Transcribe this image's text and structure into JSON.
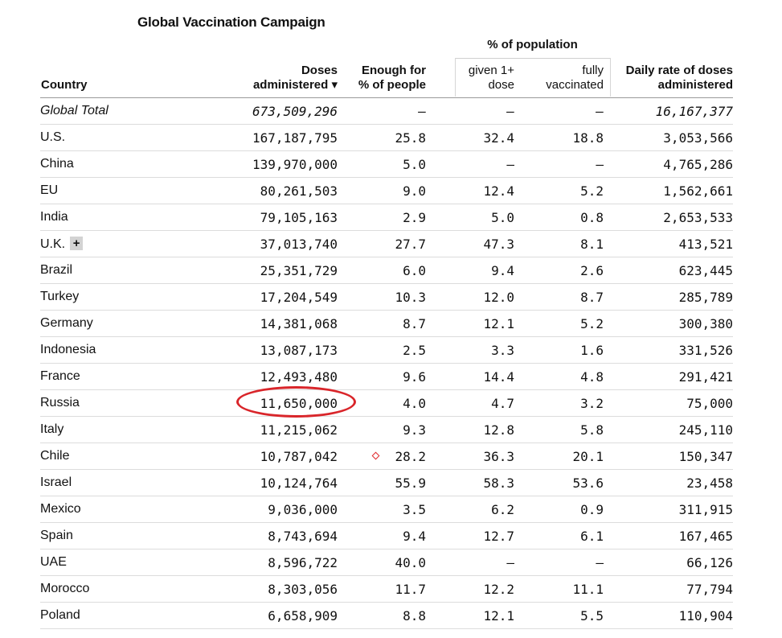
{
  "title": "Global Vaccination Campaign",
  "group_header": "% of population",
  "columns": {
    "country": "Country",
    "doses_line1": "Doses",
    "doses_line2": "administered ▾",
    "enough_line1": "Enough for",
    "enough_line2": "% of people",
    "given_line1": "given 1+",
    "given_line2": "dose",
    "fully_line1": "fully",
    "fully_line2": "vaccinated",
    "daily_line1": "Daily rate of doses",
    "daily_line2": "administered"
  },
  "total_row": {
    "country": "Global Total",
    "doses": "673,509,296",
    "enough": "–",
    "given": "–",
    "fully": "–",
    "daily": "16,167,377"
  },
  "rows": [
    {
      "country": "U.S.",
      "doses": "167,187,795",
      "enough": "25.8",
      "given": "32.4",
      "fully": "18.8",
      "daily": "3,053,566"
    },
    {
      "country": "China",
      "doses": "139,970,000",
      "enough": "5.0",
      "given": "–",
      "fully": "–",
      "daily": "4,765,286"
    },
    {
      "country": "EU",
      "doses": "80,261,503",
      "enough": "9.0",
      "given": "12.4",
      "fully": "5.2",
      "daily": "1,562,661"
    },
    {
      "country": "India",
      "doses": "79,105,163",
      "enough": "2.9",
      "given": "5.0",
      "fully": "0.8",
      "daily": "2,653,533"
    },
    {
      "country": "U.K.",
      "badge": "+",
      "doses": "37,013,740",
      "enough": "27.7",
      "given": "47.3",
      "fully": "8.1",
      "daily": "413,521"
    },
    {
      "country": "Brazil",
      "doses": "25,351,729",
      "enough": "6.0",
      "given": "9.4",
      "fully": "2.6",
      "daily": "623,445"
    },
    {
      "country": "Turkey",
      "doses": "17,204,549",
      "enough": "10.3",
      "given": "12.0",
      "fully": "8.7",
      "daily": "285,789"
    },
    {
      "country": "Germany",
      "doses": "14,381,068",
      "enough": "8.7",
      "given": "12.1",
      "fully": "5.2",
      "daily": "300,380"
    },
    {
      "country": "Indonesia",
      "doses": "13,087,173",
      "enough": "2.5",
      "given": "3.3",
      "fully": "1.6",
      "daily": "331,526"
    },
    {
      "country": "France",
      "doses": "12,493,480",
      "enough": "9.6",
      "given": "14.4",
      "fully": "4.8",
      "daily": "291,421"
    },
    {
      "country": "Russia",
      "doses": "11,650,000",
      "enough": "4.0",
      "given": "4.7",
      "fully": "3.2",
      "daily": "75,000",
      "circled": true
    },
    {
      "country": "Italy",
      "doses": "11,215,062",
      "enough": "9.3",
      "given": "12.8",
      "fully": "5.8",
      "daily": "245,110"
    },
    {
      "country": "Chile",
      "doses": "10,787,042",
      "enough": "28.2",
      "enough_marker": true,
      "given": "36.3",
      "fully": "20.1",
      "daily": "150,347"
    },
    {
      "country": "Israel",
      "doses": "10,124,764",
      "enough": "55.9",
      "given": "58.3",
      "fully": "53.6",
      "daily": "23,458"
    },
    {
      "country": "Mexico",
      "doses": "9,036,000",
      "enough": "3.5",
      "given": "6.2",
      "fully": "0.9",
      "daily": "311,915"
    },
    {
      "country": "Spain",
      "doses": "8,743,694",
      "enough": "9.4",
      "given": "12.7",
      "fully": "6.1",
      "daily": "167,465"
    },
    {
      "country": "UAE",
      "doses": "8,596,722",
      "enough": "40.0",
      "given": "–",
      "fully": "–",
      "daily": "66,126"
    },
    {
      "country": "Morocco",
      "doses": "8,303,056",
      "enough": "11.7",
      "given": "12.2",
      "fully": "11.1",
      "daily": "77,794"
    },
    {
      "country": "Poland",
      "doses": "6,658,909",
      "enough": "8.8",
      "given": "12.1",
      "fully": "5.5",
      "daily": "110,904"
    }
  ],
  "colors": {
    "annotation_circle": "#d9252a",
    "badge_bg": "#d3d3d3",
    "row_divider": "#dcdcdc"
  },
  "icons": {
    "sort_indicator": "sort-desc-icon",
    "expand": "plus-icon",
    "marker": "diamond-marker-icon"
  }
}
